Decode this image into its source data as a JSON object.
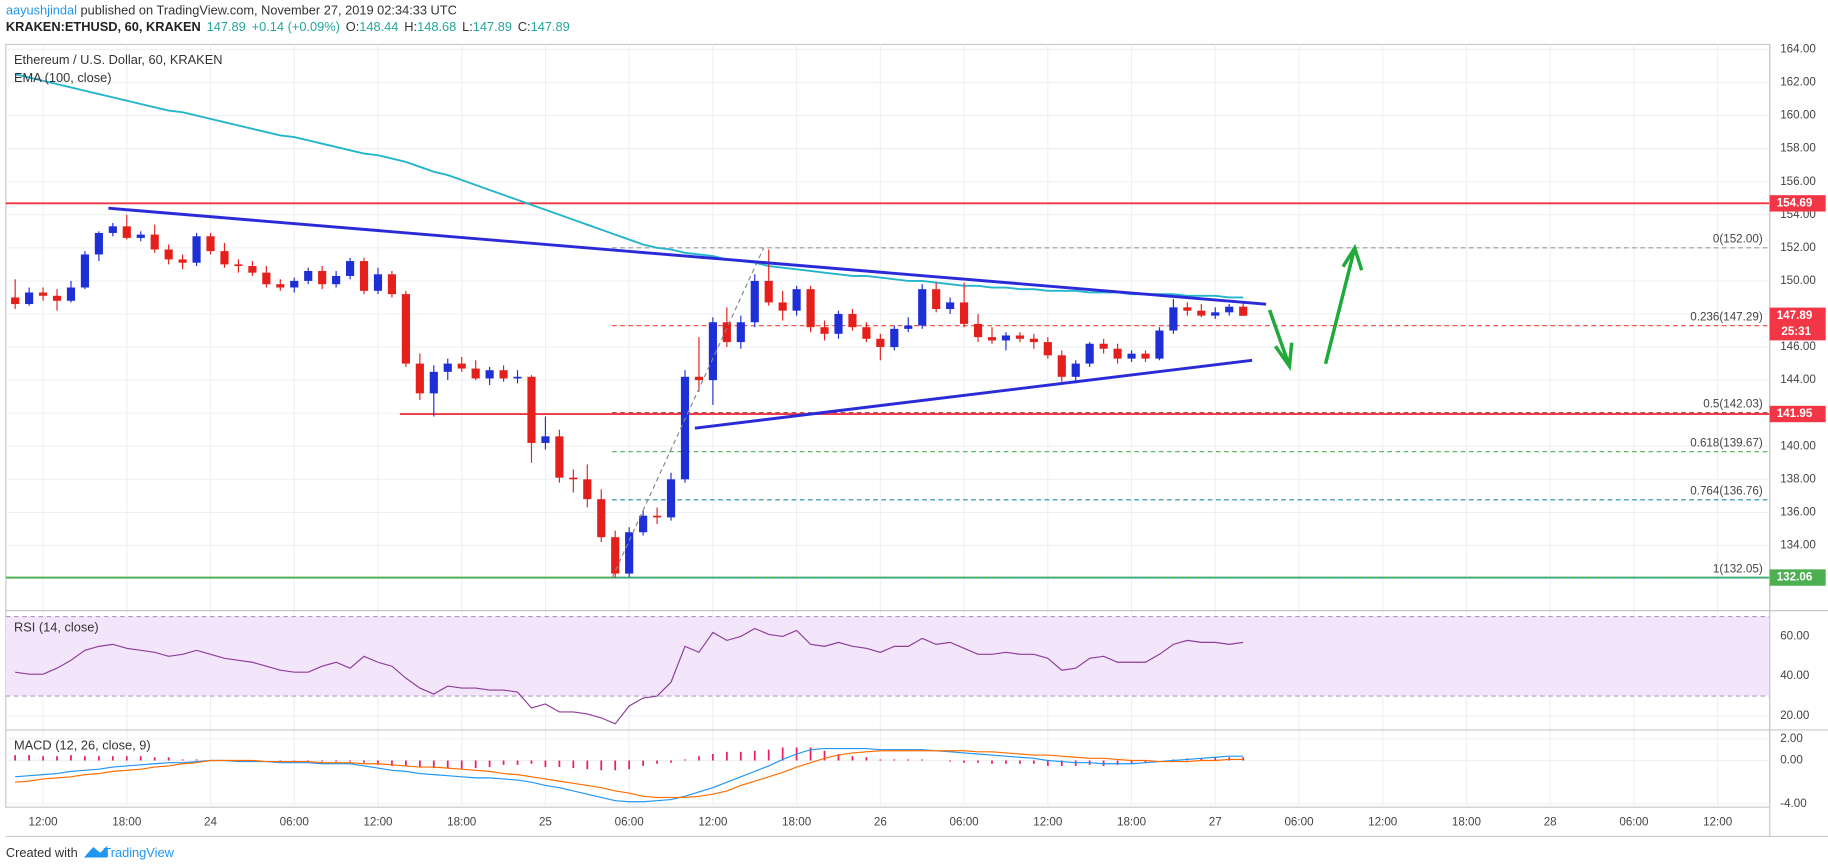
{
  "header": {
    "user": "aayushjindal",
    "published": "published on TradingView.com, November 27, 2019 02:34:33 UTC",
    "symbol": "KRAKEN:ETHUSD, 60, KRAKEN",
    "last": "147.89",
    "change": "+0.14 (+0.09%)",
    "ohlc": [
      {
        "key": "O:",
        "value": "148.44"
      },
      {
        "key": "H:",
        "value": "148.68"
      },
      {
        "key": "L:",
        "value": "147.89"
      },
      {
        "key": "C:",
        "value": "147.89"
      }
    ]
  },
  "chart_data": {
    "type": "candlestick",
    "title": "Ethereum / U.S. Dollar, 60, KRAKEN",
    "up_color": "#1f2fd6",
    "down_color": "#e5201c",
    "candles": [
      [
        149.0,
        150.1,
        148.3,
        148.6
      ],
      [
        148.6,
        149.6,
        148.5,
        149.3
      ],
      [
        149.3,
        149.6,
        148.8,
        149.1
      ],
      [
        149.1,
        149.5,
        148.2,
        148.8
      ],
      [
        148.8,
        150.0,
        148.7,
        149.6
      ],
      [
        149.6,
        151.8,
        149.5,
        151.6
      ],
      [
        151.6,
        153.0,
        151.2,
        152.9
      ],
      [
        152.9,
        153.5,
        152.7,
        153.3
      ],
      [
        153.3,
        154.0,
        152.5,
        152.6
      ],
      [
        152.6,
        153.0,
        152.4,
        152.8
      ],
      [
        152.8,
        153.4,
        151.7,
        151.9
      ],
      [
        151.9,
        152.2,
        151.0,
        151.3
      ],
      [
        151.3,
        151.6,
        150.7,
        151.1
      ],
      [
        151.1,
        152.9,
        150.9,
        152.7
      ],
      [
        152.7,
        152.9,
        151.6,
        151.8
      ],
      [
        151.8,
        152.3,
        150.8,
        151.0
      ],
      [
        151.0,
        151.3,
        150.5,
        150.9
      ],
      [
        150.9,
        151.2,
        150.3,
        150.5
      ],
      [
        150.5,
        150.9,
        149.6,
        149.8
      ],
      [
        149.8,
        150.1,
        149.4,
        149.6
      ],
      [
        149.6,
        150.2,
        149.3,
        150.0
      ],
      [
        150.0,
        150.8,
        149.8,
        150.6
      ],
      [
        150.6,
        150.9,
        149.5,
        149.8
      ],
      [
        149.8,
        150.6,
        149.6,
        150.3
      ],
      [
        150.3,
        151.4,
        150.1,
        151.2
      ],
      [
        151.2,
        151.4,
        149.2,
        149.4
      ],
      [
        149.4,
        150.8,
        149.2,
        150.4
      ],
      [
        150.4,
        150.6,
        149.0,
        149.2
      ],
      [
        149.2,
        149.4,
        144.8,
        145.0
      ],
      [
        145.0,
        145.6,
        142.8,
        143.2
      ],
      [
        143.2,
        144.9,
        141.8,
        144.5
      ],
      [
        144.5,
        145.3,
        144.0,
        145.0
      ],
      [
        145.0,
        145.4,
        144.5,
        144.7
      ],
      [
        144.7,
        145.2,
        144.0,
        144.1
      ],
      [
        144.1,
        144.8,
        143.7,
        144.6
      ],
      [
        144.6,
        144.9,
        143.9,
        144.1
      ],
      [
        144.1,
        144.6,
        143.8,
        144.2
      ],
      [
        144.2,
        144.3,
        139.0,
        140.2
      ],
      [
        140.2,
        141.8,
        139.8,
        140.6
      ],
      [
        140.6,
        141.0,
        137.8,
        138.1
      ],
      [
        138.1,
        138.6,
        137.2,
        138.0
      ],
      [
        138.0,
        138.9,
        136.3,
        136.8
      ],
      [
        136.8,
        137.4,
        134.2,
        134.5
      ],
      [
        134.5,
        134.9,
        132.05,
        132.3
      ],
      [
        132.3,
        135.1,
        132.1,
        134.8
      ],
      [
        134.8,
        136.1,
        134.6,
        135.8
      ],
      [
        135.8,
        136.3,
        135.3,
        135.7
      ],
      [
        135.7,
        138.4,
        135.5,
        138.0
      ],
      [
        138.0,
        144.6,
        137.8,
        144.2
      ],
      [
        144.2,
        146.6,
        143.3,
        144.0
      ],
      [
        144.0,
        147.8,
        142.5,
        147.5
      ],
      [
        147.5,
        148.4,
        146.0,
        146.3
      ],
      [
        146.3,
        147.9,
        145.9,
        147.5
      ],
      [
        147.5,
        150.4,
        147.2,
        150.0
      ],
      [
        150.0,
        151.9,
        148.5,
        148.7
      ],
      [
        148.7,
        149.4,
        147.6,
        148.2
      ],
      [
        148.2,
        149.7,
        147.9,
        149.5
      ],
      [
        149.5,
        149.7,
        146.9,
        147.2
      ],
      [
        147.2,
        147.6,
        146.4,
        146.8
      ],
      [
        146.8,
        148.2,
        146.5,
        148.0
      ],
      [
        148.0,
        148.3,
        147.0,
        147.2
      ],
      [
        147.2,
        147.5,
        146.3,
        146.5
      ],
      [
        146.5,
        146.8,
        145.2,
        146.0
      ],
      [
        146.0,
        147.3,
        145.8,
        147.1
      ],
      [
        147.1,
        147.8,
        146.9,
        147.3
      ],
      [
        147.3,
        149.8,
        147.1,
        149.5
      ],
      [
        149.5,
        149.9,
        148.1,
        148.3
      ],
      [
        148.3,
        149.0,
        148.0,
        148.7
      ],
      [
        148.7,
        149.9,
        147.2,
        147.4
      ],
      [
        147.4,
        148.0,
        146.3,
        146.6
      ],
      [
        146.6,
        147.2,
        146.2,
        146.4
      ],
      [
        146.4,
        146.9,
        145.8,
        146.7
      ],
      [
        146.7,
        146.9,
        146.3,
        146.5
      ],
      [
        146.5,
        146.8,
        145.9,
        146.3
      ],
      [
        146.3,
        146.6,
        145.3,
        145.5
      ],
      [
        145.5,
        145.8,
        143.9,
        144.2
      ],
      [
        144.2,
        145.2,
        143.8,
        145.0
      ],
      [
        145.0,
        146.3,
        144.8,
        146.2
      ],
      [
        146.2,
        146.5,
        145.6,
        145.9
      ],
      [
        145.9,
        146.2,
        145.0,
        145.3
      ],
      [
        145.3,
        145.8,
        145.1,
        145.6
      ],
      [
        145.6,
        145.8,
        145.1,
        145.3
      ],
      [
        145.3,
        147.2,
        145.2,
        147.0
      ],
      [
        147.0,
        148.9,
        146.8,
        148.4
      ],
      [
        148.4,
        148.7,
        147.9,
        148.2
      ],
      [
        148.2,
        148.6,
        147.8,
        147.9
      ],
      [
        147.9,
        148.4,
        147.7,
        148.1
      ],
      [
        148.1,
        148.6,
        147.9,
        148.44
      ],
      [
        148.44,
        148.68,
        147.89,
        147.89
      ]
    ],
    "ema": {
      "name": "EMA (100, close)",
      "color": "#22b5cc",
      "values": [
        162.5,
        162.3,
        162.1,
        161.9,
        161.7,
        161.5,
        161.3,
        161.1,
        160.9,
        160.7,
        160.5,
        160.3,
        160.2,
        160.0,
        159.8,
        159.6,
        159.4,
        159.2,
        159.0,
        158.8,
        158.7,
        158.5,
        158.3,
        158.1,
        157.9,
        157.7,
        157.6,
        157.4,
        157.2,
        156.9,
        156.6,
        156.4,
        156.1,
        155.8,
        155.5,
        155.2,
        154.9,
        154.6,
        154.3,
        154.0,
        153.7,
        153.4,
        153.1,
        152.8,
        152.5,
        152.2,
        152.0,
        151.9,
        151.7,
        151.6,
        151.5,
        151.3,
        151.2,
        151.1,
        150.9,
        150.8,
        150.7,
        150.6,
        150.5,
        150.4,
        150.3,
        150.3,
        150.2,
        150.1,
        150.0,
        150.0,
        149.9,
        149.8,
        149.7,
        149.7,
        149.6,
        149.6,
        149.5,
        149.5,
        149.4,
        149.4,
        149.4,
        149.3,
        149.3,
        149.3,
        149.2,
        149.2,
        149.2,
        149.2,
        149.1,
        149.1,
        149.1,
        149.0,
        149.0
      ]
    },
    "ylim": [
      130.2,
      164.3
    ],
    "yticks": [
      {
        "value": 132,
        "label": "132.00"
      },
      {
        "value": 134,
        "label": "134.00"
      },
      {
        "value": 136,
        "label": "136.00"
      },
      {
        "value": 138,
        "label": "138.00"
      },
      {
        "value": 140,
        "label": "140.00"
      },
      {
        "value": 142,
        "label": "142.00"
      },
      {
        "value": 144,
        "label": "144.00"
      },
      {
        "value": 146,
        "label": "146.00"
      },
      {
        "value": 148,
        "label": "148.00"
      },
      {
        "value": 150,
        "label": "150.00"
      },
      {
        "value": 152,
        "label": "152.00"
      },
      {
        "value": 154,
        "label": "154.00"
      },
      {
        "value": 156,
        "label": "156.00"
      },
      {
        "value": 158,
        "label": "158.00"
      },
      {
        "value": 160,
        "label": "160.00"
      },
      {
        "value": 162,
        "label": "162.00"
      },
      {
        "value": 164,
        "label": "164.00"
      }
    ],
    "time_labels": [
      "12:00",
      "18:00",
      "24",
      "06:00",
      "12:00",
      "18:00",
      "25",
      "06:00",
      "12:00",
      "18:00",
      "26",
      "06:00",
      "12:00",
      "18:00",
      "27",
      "06:00",
      "12:00",
      "18:00",
      "28",
      "06:00",
      "12:00"
    ],
    "levels": [
      {
        "value": 154.69,
        "color": "#f23645"
      },
      {
        "value": 141.95,
        "color": "#f23645"
      },
      {
        "value": 132.06,
        "color": "#4caf50"
      }
    ],
    "last_price": {
      "value": 147.89,
      "color": "#f23645"
    },
    "countdown": "25:31",
    "fib": [
      {
        "label": "0(152.00)",
        "value": 152.0,
        "color": "#9a9a9a"
      },
      {
        "label": "0.236(147.29)",
        "value": 147.29,
        "color": "#f44336"
      },
      {
        "label": "0.5(142.03)",
        "value": 142.03,
        "color": "#b03030"
      },
      {
        "label": "0.618(139.67)",
        "value": 139.67,
        "color": "#4caf50"
      },
      {
        "label": "0.764(136.76)",
        "value": 136.76,
        "color": "#1e88a8"
      },
      {
        "label": "1(132.05)",
        "value": 132.05,
        "color": "#26a6b0"
      }
    ],
    "rsi": {
      "name": "RSI (14, close)",
      "color": "#8e3e9a",
      "band": [
        30,
        70
      ],
      "ylim": [
        14.1,
        71.8
      ],
      "yticks": [
        {
          "value": 20,
          "label": "20.00"
        },
        {
          "value": 40,
          "label": "40.00"
        },
        {
          "value": 60,
          "label": "60.00"
        }
      ],
      "values": [
        42,
        41,
        41,
        44,
        48,
        53,
        55,
        56,
        54,
        53,
        52,
        50,
        51,
        53,
        51,
        49,
        48,
        47,
        45,
        43,
        42,
        42,
        45,
        47,
        44,
        50,
        47,
        45,
        39,
        34,
        31,
        35,
        34,
        34,
        33,
        33,
        32,
        24,
        26,
        22,
        22,
        21,
        19,
        16,
        25,
        29,
        30,
        37,
        55,
        52,
        62,
        58,
        60,
        64,
        61,
        60,
        63,
        56,
        55,
        57,
        55,
        54,
        52,
        55,
        55,
        59,
        56,
        57,
        54,
        51,
        51,
        52,
        51,
        51,
        49,
        43,
        44,
        49,
        50,
        47,
        47,
        47,
        51,
        56,
        58,
        57,
        57,
        56,
        57
      ]
    },
    "macd": {
      "name": "MACD (12, 26, close, 9)",
      "ylim": [
        -4.3,
        2.6
      ],
      "yticks": [
        {
          "value": -4,
          "label": "-4.00"
        },
        {
          "value": 0,
          "label": "0.00"
        },
        {
          "value": 2,
          "label": "2.00"
        }
      ],
      "macd": {
        "color": "#2196f3",
        "values": [
          -1.5,
          -1.4,
          -1.3,
          -1.2,
          -1.0,
          -0.9,
          -0.8,
          -0.6,
          -0.5,
          -0.4,
          -0.3,
          -0.2,
          -0.2,
          -0.1,
          0.0,
          0.0,
          -0.1,
          -0.1,
          -0.1,
          -0.2,
          -0.2,
          -0.2,
          -0.3,
          -0.3,
          -0.3,
          -0.5,
          -0.7,
          -0.9,
          -1.0,
          -1.2,
          -1.3,
          -1.4,
          -1.5,
          -1.6,
          -1.6,
          -1.7,
          -1.8,
          -2.0,
          -2.3,
          -2.5,
          -2.8,
          -3.1,
          -3.4,
          -3.7,
          -3.8,
          -3.8,
          -3.7,
          -3.6,
          -3.3,
          -2.9,
          -2.5,
          -2.0,
          -1.5,
          -1.0,
          -0.5,
          0.1,
          0.6,
          1.0,
          1.1,
          1.1,
          1.1,
          1.1,
          1.0,
          1.0,
          1.0,
          1.0,
          0.9,
          0.8,
          0.7,
          0.6,
          0.5,
          0.4,
          0.3,
          0.2,
          0.0,
          -0.1,
          -0.2,
          -0.2,
          -0.3,
          -0.3,
          -0.3,
          -0.2,
          -0.1,
          0.0,
          0.1,
          0.2,
          0.3,
          0.4,
          0.4
        ]
      },
      "signal": {
        "color": "#ff6d00",
        "values": [
          -2.0,
          -1.9,
          -1.7,
          -1.6,
          -1.5,
          -1.3,
          -1.2,
          -1.0,
          -0.9,
          -0.8,
          -0.6,
          -0.5,
          -0.3,
          -0.2,
          0.0,
          0.0,
          0.0,
          0.0,
          -0.1,
          -0.1,
          -0.1,
          -0.1,
          -0.2,
          -0.2,
          -0.2,
          -0.3,
          -0.3,
          -0.4,
          -0.5,
          -0.6,
          -0.6,
          -0.7,
          -0.8,
          -0.9,
          -1.0,
          -1.2,
          -1.3,
          -1.5,
          -1.7,
          -1.9,
          -2.1,
          -2.3,
          -2.5,
          -2.8,
          -3.0,
          -3.3,
          -3.4,
          -3.4,
          -3.4,
          -3.3,
          -3.1,
          -2.8,
          -2.3,
          -1.9,
          -1.5,
          -1.1,
          -0.6,
          -0.2,
          0.2,
          0.5,
          0.7,
          0.8,
          0.9,
          0.9,
          0.9,
          0.9,
          0.9,
          0.9,
          0.9,
          0.8,
          0.8,
          0.7,
          0.6,
          0.5,
          0.5,
          0.4,
          0.3,
          0.2,
          0.2,
          0.1,
          0.0,
          0.0,
          -0.1,
          -0.1,
          -0.1,
          0.0,
          0.0,
          0.1,
          0.1
        ]
      },
      "histogram": {
        "color": "#e91e63",
        "values": [
          0.5,
          0.5,
          0.4,
          0.4,
          0.5,
          0.4,
          0.4,
          0.4,
          0.4,
          0.4,
          0.3,
          0.3,
          0.1,
          0.1,
          0.0,
          0.0,
          -0.1,
          -0.1,
          0.0,
          -0.1,
          -0.1,
          -0.1,
          -0.1,
          -0.1,
          -0.1,
          -0.2,
          -0.4,
          -0.5,
          -0.5,
          -0.6,
          -0.7,
          -0.7,
          -0.8,
          -0.7,
          -0.6,
          -0.4,
          -0.4,
          -0.3,
          -0.6,
          -0.6,
          -0.7,
          -0.8,
          -0.9,
          -0.9,
          -0.8,
          -0.5,
          -0.3,
          -0.2,
          0.1,
          0.4,
          0.6,
          0.8,
          0.8,
          0.9,
          1.0,
          1.2,
          1.2,
          1.2,
          0.9,
          0.6,
          0.4,
          0.3,
          0.1,
          0.1,
          0.1,
          0.1,
          0.0,
          -0.1,
          -0.2,
          -0.2,
          -0.3,
          -0.3,
          -0.3,
          -0.3,
          -0.5,
          -0.5,
          -0.5,
          -0.4,
          -0.5,
          -0.4,
          -0.3,
          -0.2,
          0.0,
          0.1,
          0.2,
          0.2,
          0.3,
          0.3,
          0.3
        ]
      }
    }
  },
  "footer": {
    "created": "Created with",
    "brand": "TradingView"
  }
}
